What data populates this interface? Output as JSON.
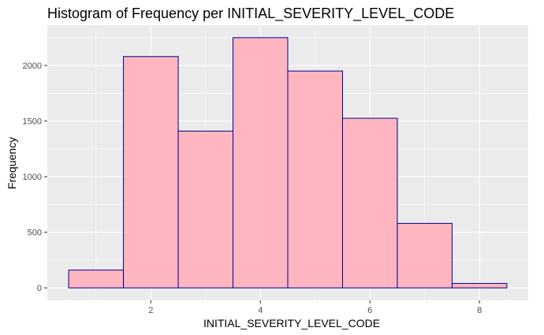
{
  "chart_data": {
    "type": "bar",
    "title": "Histogram of Frequency per INITIAL_SEVERITY_LEVEL_CODE",
    "xlabel": "INITIAL_SEVERITY_LEVEL_CODE",
    "ylabel": "Frequency",
    "bins": [
      {
        "center": 1,
        "value": 160
      },
      {
        "center": 2,
        "value": 2080
      },
      {
        "center": 3,
        "value": 1410
      },
      {
        "center": 4,
        "value": 2250
      },
      {
        "center": 5,
        "value": 1950
      },
      {
        "center": 6,
        "value": 1525
      },
      {
        "center": 7,
        "value": 580
      },
      {
        "center": 8,
        "value": 40
      }
    ],
    "bin_width": 1,
    "xlim": [
      0.11,
      8.89
    ],
    "ylim": [
      -112,
      2362
    ],
    "x_ticks": [
      2,
      4,
      6,
      8
    ],
    "y_ticks": [
      0,
      500,
      1000,
      1500,
      2000
    ],
    "grid": true,
    "colors": {
      "fill": "#ffb6c1",
      "border": "#00008b",
      "panel": "#ebebeb"
    }
  }
}
